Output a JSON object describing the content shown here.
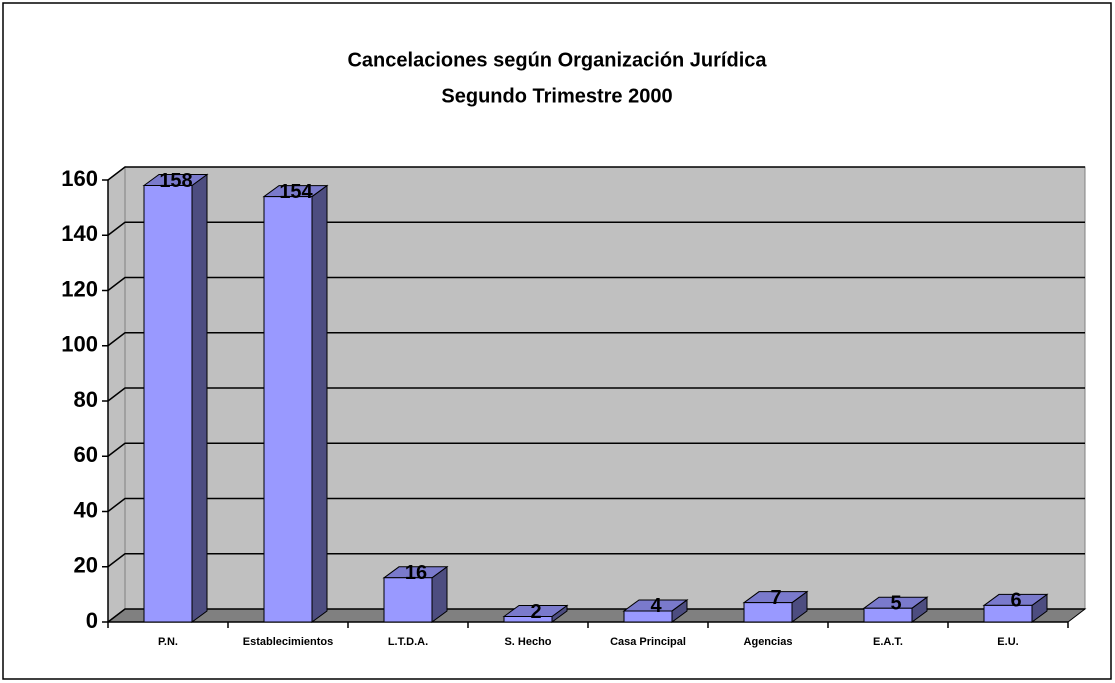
{
  "chart_data": {
    "type": "bar3d",
    "title": "Cancelaciones según Organización Jurídica",
    "subtitle": "Segundo Trimestre 2000",
    "categories": [
      "P.N.",
      "Establecimientos",
      "L.T.D.A.",
      "S. Hecho",
      "Casa Principal",
      "Agencias",
      "E.A.T.",
      "E.U."
    ],
    "values": [
      158,
      154,
      16,
      2,
      4,
      7,
      5,
      6
    ],
    "color": "#9999ff",
    "ylim": [
      0,
      160
    ],
    "yticks": [
      0,
      20,
      40,
      60,
      80,
      100,
      120,
      140,
      160
    ],
    "grid": true
  }
}
